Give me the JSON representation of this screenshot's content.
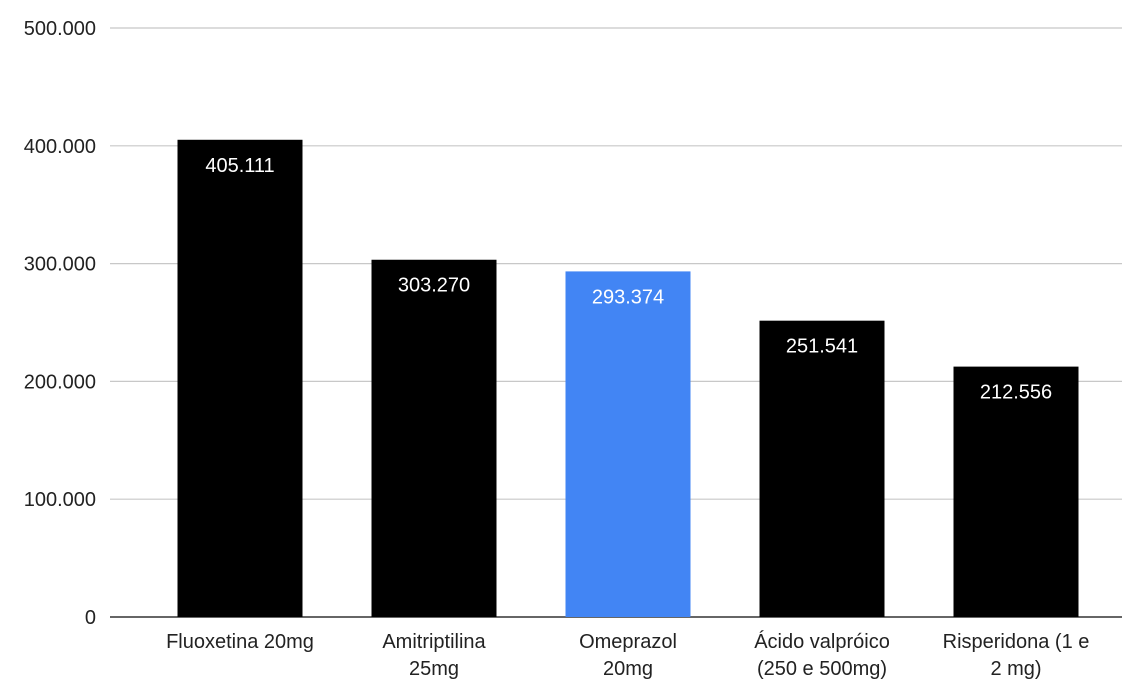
{
  "chart_data": {
    "type": "bar",
    "categories": [
      [
        "Fluoxetina 20mg"
      ],
      [
        "Amitriptilina",
        "25mg"
      ],
      [
        "Omeprazol",
        "20mg"
      ],
      [
        "Ácido valpróico",
        "(250 e 500mg)"
      ],
      [
        "Risperidona (1 e",
        "2 mg)"
      ]
    ],
    "values": [
      405111,
      303270,
      293374,
      251541,
      212556
    ],
    "data_labels": [
      "405.111",
      "303.270",
      "293.374",
      "251.541",
      "212.556"
    ],
    "bar_colors": [
      "#000000",
      "#000000",
      "#4285f4",
      "#000000",
      "#000000"
    ],
    "ylim": [
      0,
      500000
    ],
    "yticks": [
      0,
      100000,
      200000,
      300000,
      400000,
      500000
    ],
    "ytick_labels": [
      "0",
      "100.000",
      "200.000",
      "300.000",
      "400.000",
      "500.000"
    ],
    "grid": true,
    "legend": "none",
    "title": "",
    "xlabel": "",
    "ylabel": ""
  }
}
